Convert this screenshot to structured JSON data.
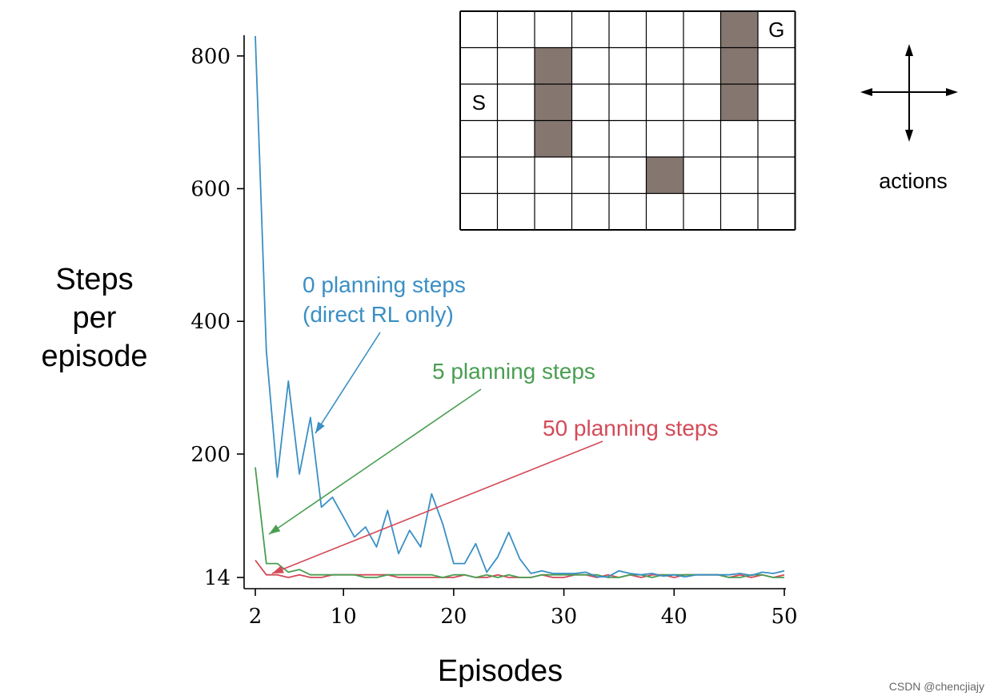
{
  "chart_data": {
    "type": "line",
    "ylabel_lines": [
      "Steps",
      "per",
      "episode"
    ],
    "xlabel": "Episodes",
    "x_ticks": [
      2,
      10,
      20,
      30,
      40,
      50
    ],
    "y_ticks": [
      14,
      200,
      400,
      600,
      800
    ],
    "xlim": [
      2,
      50
    ],
    "ylim": [
      14,
      830
    ],
    "grid": false,
    "series": [
      {
        "name": "0 planning steps",
        "name_line2": "(direct RL only)",
        "color": "#3a8fc4",
        "x": [
          2,
          3,
          4,
          5,
          6,
          7,
          8,
          9,
          10,
          11,
          12,
          13,
          14,
          15,
          16,
          17,
          18,
          19,
          20,
          21,
          22,
          23,
          24,
          25,
          26,
          27,
          28,
          29,
          30,
          31,
          32,
          33,
          34,
          35,
          36,
          37,
          38,
          39,
          40,
          41,
          42,
          43,
          44,
          45,
          46,
          47,
          48,
          49,
          50
        ],
        "y": [
          830,
          355,
          165,
          310,
          170,
          255,
          120,
          135,
          105,
          75,
          90,
          60,
          115,
          50,
          85,
          60,
          140,
          95,
          35,
          35,
          65,
          22,
          45,
          82,
          42,
          20,
          24,
          20,
          20,
          20,
          22,
          15,
          15,
          24,
          20,
          18,
          20,
          16,
          18,
          15,
          18,
          18,
          18,
          18,
          20,
          17,
          22,
          20,
          24
        ]
      },
      {
        "name": "5 planning steps",
        "color": "#4a9e52",
        "x": [
          2,
          3,
          4,
          5,
          6,
          7,
          8,
          9,
          10,
          11,
          12,
          13,
          14,
          15,
          16,
          17,
          18,
          19,
          20,
          21,
          22,
          23,
          24,
          25,
          26,
          27,
          28,
          29,
          30,
          31,
          32,
          33,
          34,
          35,
          36,
          37,
          38,
          39,
          40,
          41,
          42,
          43,
          44,
          45,
          46,
          47,
          48,
          49,
          50
        ],
        "y": [
          180,
          35,
          35,
          22,
          26,
          18,
          18,
          18,
          18,
          18,
          14,
          14,
          18,
          18,
          18,
          18,
          18,
          14,
          18,
          18,
          14,
          18,
          14,
          18,
          14,
          14,
          18,
          18,
          18,
          18,
          18,
          18,
          14,
          14,
          18,
          18,
          14,
          18,
          18,
          18,
          18,
          18,
          18,
          14,
          14,
          18,
          18,
          14,
          14
        ]
      },
      {
        "name": "50 planning steps",
        "color": "#d44a58",
        "x": [
          2,
          3,
          4,
          5,
          6,
          7,
          8,
          9,
          10,
          11,
          12,
          13,
          14,
          15,
          16,
          17,
          18,
          19,
          20,
          21,
          22,
          23,
          24,
          25,
          26,
          27,
          28,
          29,
          30,
          31,
          32,
          33,
          34,
          35,
          36,
          37,
          38,
          39,
          40,
          41,
          42,
          43,
          44,
          45,
          46,
          47,
          48,
          49,
          50
        ],
        "y": [
          40,
          18,
          18,
          14,
          18,
          14,
          14,
          18,
          18,
          18,
          18,
          18,
          18,
          14,
          14,
          14,
          14,
          14,
          14,
          18,
          14,
          14,
          18,
          14,
          14,
          14,
          18,
          14,
          14,
          18,
          18,
          14,
          18,
          14,
          18,
          14,
          18,
          18,
          14,
          18,
          18,
          18,
          18,
          14,
          18,
          14,
          18,
          14,
          18
        ]
      }
    ]
  },
  "maze": {
    "cols": 9,
    "rows": 6,
    "walls": [
      [
        2,
        1
      ],
      [
        2,
        2
      ],
      [
        2,
        3
      ],
      [
        7,
        0
      ],
      [
        7,
        1
      ],
      [
        7,
        2
      ],
      [
        5,
        4
      ]
    ],
    "start": {
      "label": "S",
      "col": 0,
      "row": 2
    },
    "goal": {
      "label": "G",
      "col": 8,
      "row": 0
    },
    "wall_color": "#857770"
  },
  "actions_label": "actions",
  "watermark": "CSDN @chencjiajy"
}
